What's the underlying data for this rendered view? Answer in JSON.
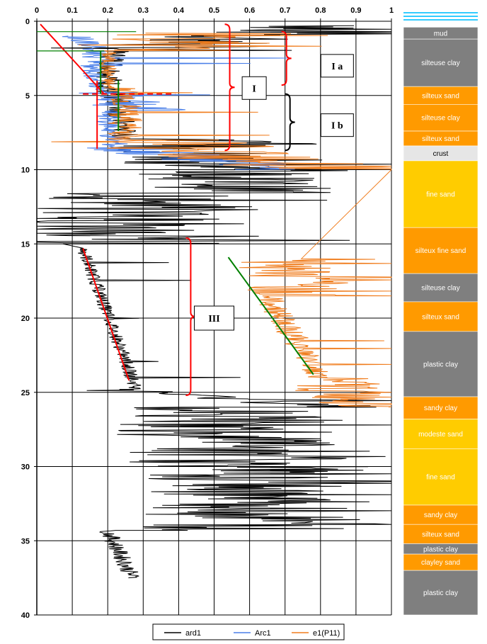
{
  "chart_data": {
    "type": "line",
    "x_ticks": [
      "0",
      "0.1",
      "0.2",
      "0.3",
      "0.4",
      "0.5",
      "0.6",
      "0.7",
      "0.8",
      "0.9",
      "1"
    ],
    "y_ticks": [
      "0",
      "5",
      "10",
      "15",
      "20",
      "25",
      "30",
      "35",
      "40"
    ],
    "xlim": [
      0,
      1
    ],
    "ylim": [
      0,
      40
    ],
    "y_reversed": true,
    "grid": true,
    "legend_position": "bottom",
    "series": [
      {
        "name": "ard1",
        "color": "#000000"
      },
      {
        "name": "Arc1",
        "color": "#4a7fe8"
      },
      {
        "name": "e1(P11)",
        "color": "#f07d1e"
      }
    ],
    "annotations": {
      "I": "I",
      "Ia": "I a",
      "Ib": "I b",
      "III": "III"
    },
    "layers": [
      {
        "label": "mud",
        "top": 0.4,
        "bottom": 1.2,
        "color": "#7f7f7f"
      },
      {
        "label": "silteuse clay",
        "top": 1.2,
        "bottom": 4.4,
        "color": "#7f7f7f"
      },
      {
        "label": "silteux sand",
        "top": 4.4,
        "bottom": 5.6,
        "color": "#ff9a00"
      },
      {
        "label": "silteuse clay",
        "top": 5.6,
        "bottom": 7.4,
        "color": "#ff9a00"
      },
      {
        "label": "silteux sand",
        "top": 7.4,
        "bottom": 8.4,
        "color": "#ff9a00"
      },
      {
        "label": "crust",
        "top": 8.4,
        "bottom": 9.4,
        "color": "#e6e6e6"
      },
      {
        "label": "fine sand",
        "top": 9.4,
        "bottom": 13.9,
        "color": "#ffcc00"
      },
      {
        "label": "silteux fine sand",
        "top": 13.9,
        "bottom": 17.0,
        "color": "#ff9a00"
      },
      {
        "label": "silteuse clay",
        "top": 17.0,
        "bottom": 18.9,
        "color": "#7f7f7f"
      },
      {
        "label": "silteux sand",
        "top": 18.9,
        "bottom": 20.9,
        "color": "#ff9a00"
      },
      {
        "label": "plastic clay",
        "top": 20.9,
        "bottom": 25.3,
        "color": "#7f7f7f"
      },
      {
        "label": "sandy clay",
        "top": 25.3,
        "bottom": 26.8,
        "color": "#ff9a00"
      },
      {
        "label": "modeste sand",
        "top": 26.8,
        "bottom": 28.8,
        "color": "#ffcc00"
      },
      {
        "label": "fine sand",
        "top": 28.8,
        "bottom": 32.6,
        "color": "#ffcc00"
      },
      {
        "label": "sandy clay",
        "top": 32.6,
        "bottom": 33.9,
        "color": "#ff9a00"
      },
      {
        "label": "silteux sand",
        "top": 33.9,
        "bottom": 35.2,
        "color": "#ff9a00"
      },
      {
        "label": "plastic clay",
        "top": 35.2,
        "bottom": 35.9,
        "color": "#7f7f7f"
      },
      {
        "label": "clayley sand",
        "top": 35.9,
        "bottom": 37.0,
        "color": "#ff9a00"
      },
      {
        "label": "plastic clay",
        "top": 37.0,
        "bottom": 40.0,
        "color": "#7f7f7f"
      }
    ],
    "trend_lines": [
      {
        "color": "#ff0000",
        "from": [
          0.01,
          0.2
        ],
        "to": [
          0.19,
          4.9
        ]
      },
      {
        "color": "#ff0000",
        "from": [
          0.13,
          15.3
        ],
        "to": [
          0.26,
          24.2
        ]
      },
      {
        "color": "#008000",
        "from": [
          0.54,
          15.9
        ],
        "to": [
          0.78,
          23.8
        ]
      },
      {
        "color": "#008000",
        "from": [
          0.18,
          2.0
        ],
        "to": [
          0.18,
          4.9
        ]
      },
      {
        "color": "#008000",
        "from": [
          0.23,
          4.0
        ],
        "to": [
          0.23,
          7.4
        ]
      },
      {
        "color": "#ff0000",
        "from": [
          0.17,
          4.0
        ],
        "to": [
          0.17,
          8.6
        ]
      }
    ],
    "dashed_lines": [
      {
        "color": "#ff0000",
        "from": [
          0.13,
          4.9
        ],
        "to": [
          0.39,
          4.9
        ]
      }
    ],
    "depth_lines": [
      {
        "color": "#008000",
        "from": [
          0,
          0.7
        ],
        "to": [
          0.28,
          0.7
        ]
      },
      {
        "color": "#008000",
        "from": [
          0,
          2.0
        ],
        "to": [
          0.19,
          2.0
        ]
      }
    ]
  }
}
